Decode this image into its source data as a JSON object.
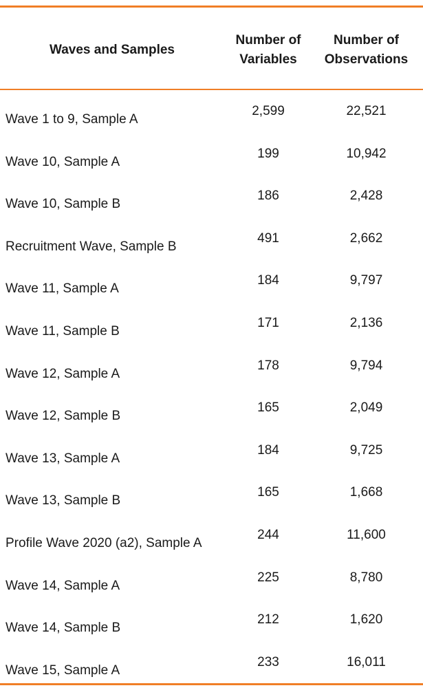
{
  "accent_color": "#f07e26",
  "table": {
    "headers": {
      "waves": "Waves and Samples",
      "variables_line1": "Number of",
      "variables_line2": "Variables",
      "observations_line1": "Number of",
      "observations_line2": "Observations"
    },
    "rows": [
      {
        "label": "Wave 1 to 9, Sample A",
        "variables": "2,599",
        "observations": "22,521"
      },
      {
        "label": "Wave 10, Sample A",
        "variables": "199",
        "observations": "10,942"
      },
      {
        "label": "Wave 10, Sample B",
        "variables": "186",
        "observations": "2,428"
      },
      {
        "label": "Recruitment Wave, Sample B",
        "variables": "491",
        "observations": "2,662"
      },
      {
        "label": "Wave 11, Sample A",
        "variables": "184",
        "observations": "9,797"
      },
      {
        "label": "Wave 11, Sample B",
        "variables": "171",
        "observations": "2,136"
      },
      {
        "label": "Wave 12, Sample A",
        "variables": "178",
        "observations": "9,794"
      },
      {
        "label": "Wave 12, Sample B",
        "variables": "165",
        "observations": "2,049"
      },
      {
        "label": "Wave 13, Sample A",
        "variables": "184",
        "observations": "9,725"
      },
      {
        "label": "Wave 13, Sample B",
        "variables": "165",
        "observations": "1,668"
      },
      {
        "label": "Profile Wave 2020 (a2), Sample A",
        "variables": "244",
        "observations": "11,600"
      },
      {
        "label": "Wave 14, Sample A",
        "variables": "225",
        "observations": "8,780"
      },
      {
        "label": "Wave 14, Sample B",
        "variables": "212",
        "observations": "1,620"
      },
      {
        "label": "Wave 15, Sample A",
        "variables": "233",
        "observations": "16,011"
      }
    ]
  }
}
